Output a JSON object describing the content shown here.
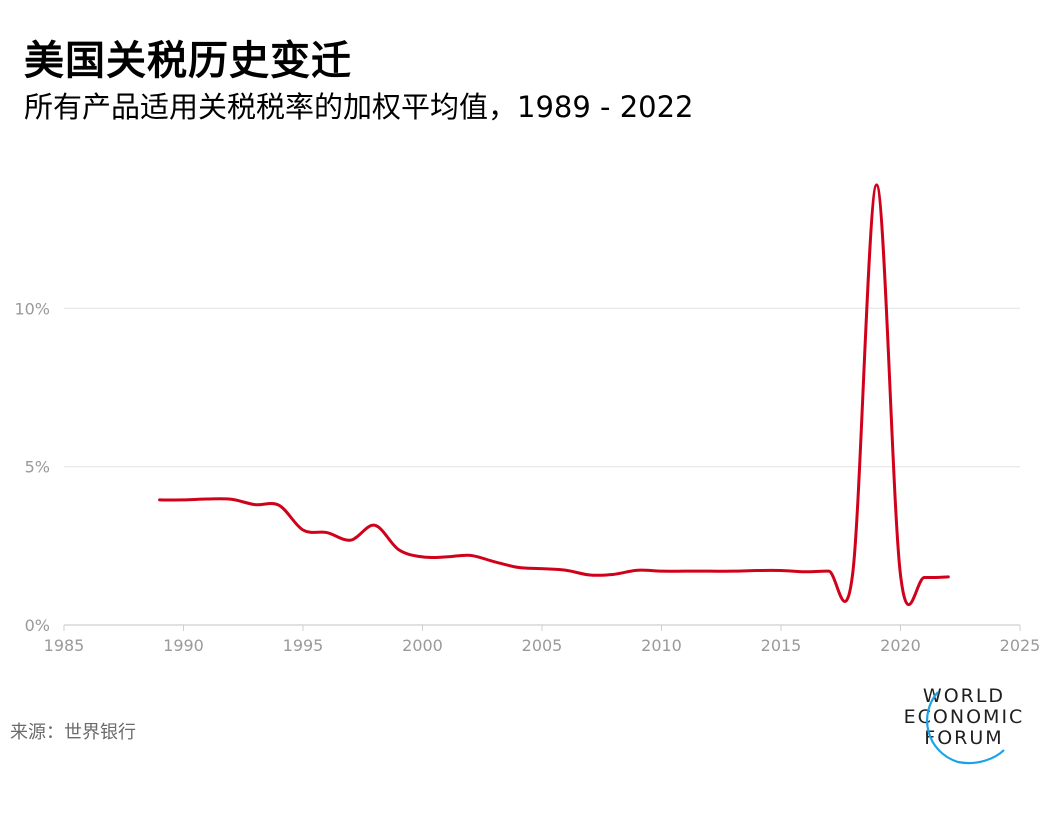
{
  "title": "美国关税历史变迁",
  "subtitle": "所有产品适用关税税率的加权平均值，1989 - 2022",
  "source": "来源：世界银行",
  "logo": {
    "line1": "WORLD",
    "line2": "ECONOMIC",
    "line3": "FORUM"
  },
  "colors": {
    "line": "#d0021b",
    "grid": "#e6e6e6",
    "axis_text": "#9a9a9a",
    "logo_arc": "#1aa3e8"
  },
  "chart_data": {
    "type": "line",
    "title": "美国关税历史变迁",
    "subtitle": "所有产品适用关税税率的加权平均值，1989 - 2022",
    "xlabel": "",
    "ylabel": "",
    "xlim": [
      1985,
      2025
    ],
    "ylim": [
      0,
      15
    ],
    "x_ticks": [
      1985,
      1990,
      1995,
      2000,
      2005,
      2010,
      2015,
      2020,
      2025
    ],
    "x_tick_labels": [
      "1985",
      "1990",
      "1995",
      "2000",
      "2005",
      "2010",
      "2015",
      "2020",
      "2025"
    ],
    "y_ticks": [
      0,
      5,
      10
    ],
    "y_tick_labels": [
      "0%",
      "5%",
      "10%"
    ],
    "grid": true,
    "series": [
      {
        "x": [
          1989,
          1990,
          1991,
          1992,
          1993,
          1994,
          1995,
          1996,
          1997,
          1998,
          1999,
          2000,
          2001,
          2002,
          2003,
          2004,
          2005,
          2006,
          2007,
          2008,
          2009,
          2010,
          2011,
          2012,
          2013,
          2014,
          2015,
          2016,
          2017,
          2018,
          2019,
          2020,
          2021,
          2022
        ],
        "values": [
          3.95,
          3.95,
          3.98,
          3.97,
          3.8,
          3.78,
          3.0,
          2.92,
          2.68,
          3.15,
          2.38,
          2.15,
          2.15,
          2.2,
          2.0,
          1.82,
          1.78,
          1.73,
          1.58,
          1.6,
          1.73,
          1.7,
          1.7,
          1.7,
          1.7,
          1.72,
          1.72,
          1.68,
          1.7,
          1.63,
          13.9,
          1.58,
          1.5,
          1.52
        ]
      }
    ]
  }
}
